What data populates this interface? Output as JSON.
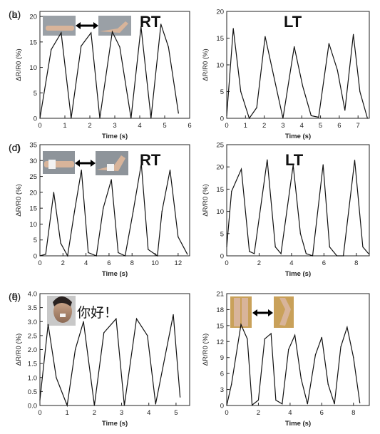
{
  "chart_data": [
    {
      "panel": "(a)",
      "type": "line",
      "annotation": "RT",
      "xlabel": "Time (s)",
      "ylabel": "ΔR/R0 (%)",
      "xlim": [
        0,
        6.0
      ],
      "ylim": [
        0,
        21
      ],
      "xticks": [
        0,
        1,
        2,
        3,
        4,
        5,
        6
      ],
      "yticks": [
        0,
        5,
        10,
        15,
        20
      ],
      "x": [
        0,
        0.45,
        0.85,
        1.25,
        1.65,
        2.05,
        2.4,
        2.9,
        3.2,
        3.65,
        4.05,
        4.45,
        4.85,
        5.15,
        5.55
      ],
      "y": [
        0,
        13.5,
        16.8,
        0,
        14.2,
        16.8,
        0,
        17,
        14,
        0,
        18,
        0,
        18.5,
        14,
        1
      ]
    },
    {
      "panel": "(b)",
      "type": "line",
      "annotation": "LT",
      "xlabel": "Time (s)",
      "ylabel": "ΔR/R0 (%)",
      "xlim": [
        0,
        7.6
      ],
      "ylim": [
        0,
        20
      ],
      "xticks": [
        0,
        1,
        2,
        3,
        4,
        5,
        6,
        7
      ],
      "yticks": [
        0,
        5,
        10,
        15,
        20
      ],
      "x": [
        0,
        0.35,
        0.75,
        1.2,
        1.6,
        2.05,
        2.5,
        3.0,
        3.6,
        4.05,
        4.5,
        4.9,
        5.45,
        5.9,
        6.3,
        6.75,
        7.1,
        7.5
      ],
      "y": [
        0.5,
        16.8,
        5,
        0,
        2,
        15.3,
        8,
        0,
        13.4,
        6,
        0.5,
        0.2,
        14,
        9,
        1.5,
        15.7,
        5,
        0
      ]
    },
    {
      "panel": "(c)",
      "type": "line",
      "annotation": "RT",
      "xlabel": "Time (s)",
      "ylabel": "ΔR/R0 (%)",
      "xlim": [
        0,
        13
      ],
      "ylim": [
        0,
        35
      ],
      "xticks": [
        0,
        2,
        4,
        6,
        8,
        10,
        12
      ],
      "yticks": [
        0,
        5,
        10,
        15,
        20,
        25,
        30,
        35
      ],
      "x": [
        0,
        0.5,
        1.2,
        1.8,
        2.4,
        3.0,
        3.6,
        4.2,
        4.9,
        5.5,
        6.2,
        6.8,
        7.4,
        8.1,
        8.8,
        9.4,
        10.2,
        10.6,
        11.3,
        12.0,
        12.8
      ],
      "y": [
        0,
        0.5,
        20,
        4,
        0,
        14,
        27,
        1,
        0,
        15,
        24,
        1,
        0,
        14,
        29,
        2,
        0,
        14,
        27,
        6,
        0.5
      ]
    },
    {
      "panel": "(d)",
      "type": "line",
      "annotation": "LT",
      "xlabel": "Time (s)",
      "ylabel": "ΔR/R0 (%)",
      "xlim": [
        0,
        8.8
      ],
      "ylim": [
        0,
        25
      ],
      "xticks": [
        0,
        2,
        4,
        6,
        8
      ],
      "yticks": [
        0,
        5,
        10,
        15,
        20,
        25
      ],
      "x": [
        0,
        0.3,
        0.9,
        1.4,
        1.7,
        2.5,
        3.0,
        3.35,
        4.1,
        4.55,
        4.9,
        5.3,
        5.95,
        6.35,
        6.8,
        7.2,
        7.9,
        8.4,
        8.75
      ],
      "y": [
        2,
        14.5,
        19.5,
        1,
        0.5,
        21.6,
        2,
        0.5,
        20.4,
        5,
        0.5,
        0,
        20.5,
        2,
        0,
        0,
        21.5,
        2,
        0.5
      ]
    },
    {
      "panel": "(e)",
      "type": "line",
      "annotation": "你好！",
      "xlabel": "Time (s)",
      "ylabel": "ΔR/R0 (%)",
      "xlim": [
        0,
        5.5
      ],
      "ylim": [
        0,
        4.0
      ],
      "xticks": [
        0,
        1,
        2,
        3,
        4,
        5
      ],
      "yticks": [
        0.0,
        0.5,
        1.0,
        1.5,
        2.0,
        2.5,
        3.0,
        3.5,
        4.0
      ],
      "x": [
        0,
        0.3,
        0.6,
        1.0,
        1.3,
        1.6,
        2.0,
        2.35,
        2.8,
        3.1,
        3.55,
        3.95,
        4.25,
        4.9,
        5.15
      ],
      "y": [
        0.2,
        2.9,
        1.0,
        0,
        2.0,
        3.0,
        0,
        2.6,
        3.1,
        0,
        3.1,
        2.5,
        0.05,
        3.25,
        0.3
      ]
    },
    {
      "panel": "(f)",
      "type": "line",
      "xlabel": "Time (s)",
      "ylabel": "ΔR/R0 (%)",
      "xlim": [
        0,
        9
      ],
      "ylim": [
        0,
        21
      ],
      "xticks": [
        0,
        2,
        4,
        6,
        8
      ],
      "yticks": [
        0,
        3,
        6,
        9,
        12,
        15,
        18,
        21
      ],
      "x": [
        0,
        0.3,
        0.9,
        1.3,
        1.6,
        2.0,
        2.4,
        2.8,
        3.1,
        3.5,
        3.9,
        4.3,
        4.7,
        5.1,
        5.6,
        6.0,
        6.4,
        6.8,
        7.2,
        7.6,
        8.0,
        8.4
      ],
      "y": [
        0,
        4,
        15.2,
        12.5,
        0.1,
        1,
        12.5,
        13.5,
        1,
        0.3,
        10.5,
        13.2,
        5,
        0.3,
        9.5,
        12.8,
        4,
        0.3,
        11,
        14.7,
        9,
        0.5
      ]
    }
  ]
}
